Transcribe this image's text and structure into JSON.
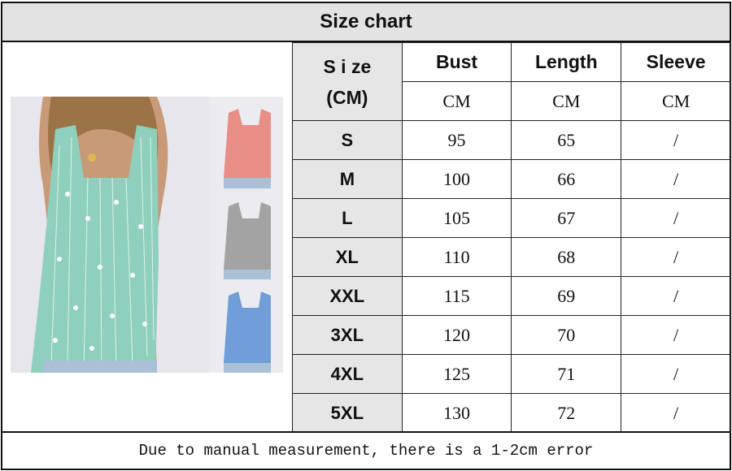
{
  "title": "Size chart",
  "table": {
    "size_header_line1": "S i ze",
    "size_header_line2": "(CM)",
    "columns": [
      "Bust",
      "Length",
      "Sleeve"
    ],
    "units": [
      "CM",
      "CM",
      "CM"
    ],
    "rows": [
      {
        "size": "S",
        "bust": "95",
        "length": "65",
        "sleeve": "/"
      },
      {
        "size": "M",
        "bust": "100",
        "length": "66",
        "sleeve": "/"
      },
      {
        "size": "L",
        "bust": "105",
        "length": "67",
        "sleeve": "/"
      },
      {
        "size": "XL",
        "bust": "110",
        "length": "68",
        "sleeve": "/"
      },
      {
        "size": "XXL",
        "bust": "115",
        "length": "69",
        "sleeve": "/"
      },
      {
        "size": "3XL",
        "bust": "120",
        "length": "70",
        "sleeve": "/"
      },
      {
        "size": "4XL",
        "bust": "125",
        "length": "71",
        "sleeve": "/"
      },
      {
        "size": "5XL",
        "bust": "130",
        "length": "72",
        "sleeve": "/"
      }
    ]
  },
  "product_colors": [
    "#8fcfbd",
    "#e98e86",
    "#a3a3a3",
    "#6f9ed8"
  ],
  "footer": "Due to manual measurement, there is a 1-2cm error"
}
